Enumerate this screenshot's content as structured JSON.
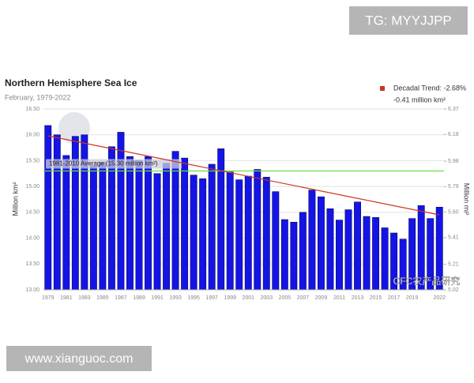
{
  "watermark_top": "TG: MYYJJPP",
  "watermark_bottom": "www.xianguoc.com",
  "watermark_logo": "CFC农产品研究",
  "chart_data": {
    "type": "bar",
    "title": "Northern Hemisphere Sea Ice",
    "subtitle": "February, 1979-2022",
    "ylabel": "Million km²",
    "y2label": "Million mi²",
    "categories": [
      "1979",
      null,
      "1981",
      null,
      "1983",
      null,
      "1985",
      null,
      "1987",
      null,
      "1989",
      null,
      "1991",
      null,
      "1993",
      null,
      "1995",
      null,
      "1997",
      null,
      "1999",
      null,
      "2001",
      null,
      "2003",
      null,
      "2005",
      null,
      "2007",
      null,
      "2009",
      null,
      "2011",
      null,
      "2013",
      null,
      "2015",
      null,
      "2017",
      null,
      "2019",
      null,
      null,
      "2022"
    ],
    "values": [
      16.18,
      16.0,
      15.6,
      15.97,
      16.0,
      15.4,
      15.47,
      15.77,
      16.05,
      15.58,
      15.5,
      15.58,
      15.25,
      15.45,
      15.68,
      15.55,
      15.22,
      15.15,
      15.43,
      15.73,
      15.28,
      15.13,
      15.2,
      15.33,
      15.18,
      14.9,
      14.36,
      14.31,
      14.5,
      14.93,
      14.8,
      14.57,
      14.35,
      14.55,
      14.7,
      14.42,
      14.4,
      14.2,
      14.1,
      13.98,
      14.38,
      14.63,
      14.38,
      14.6
    ],
    "color": "#1414e6",
    "ylim": [
      13.0,
      16.5
    ],
    "yticks": [
      {
        "value": 13.0,
        "label": "13.00"
      },
      {
        "value": 13.5,
        "label": "13.50"
      },
      {
        "value": 14.0,
        "label": "14.00"
      },
      {
        "value": 14.5,
        "label": "14.50"
      },
      {
        "value": 15.0,
        "label": "15.00"
      },
      {
        "value": 15.5,
        "label": "15.50"
      },
      {
        "value": 16.0,
        "label": "16.00"
      },
      {
        "value": 16.5,
        "label": "16.50"
      }
    ],
    "y2lim": [
      5.02,
      6.37
    ],
    "y2ticks": [
      5.02,
      5.21,
      5.41,
      {
        "value": 5.6,
        "label": "5.60"
      },
      5.79,
      5.98,
      6.18,
      6.37
    ],
    "grid": true,
    "average": {
      "value": 15.3,
      "label": "1981-2010 Average (15.30 million km²)",
      "color": "#66dd44"
    },
    "trend": {
      "name": "Decadal Trend: -2.68%",
      "name2": "-0.41 million km²",
      "start": 15.98,
      "end": 14.45,
      "color": "#cc3322"
    }
  }
}
